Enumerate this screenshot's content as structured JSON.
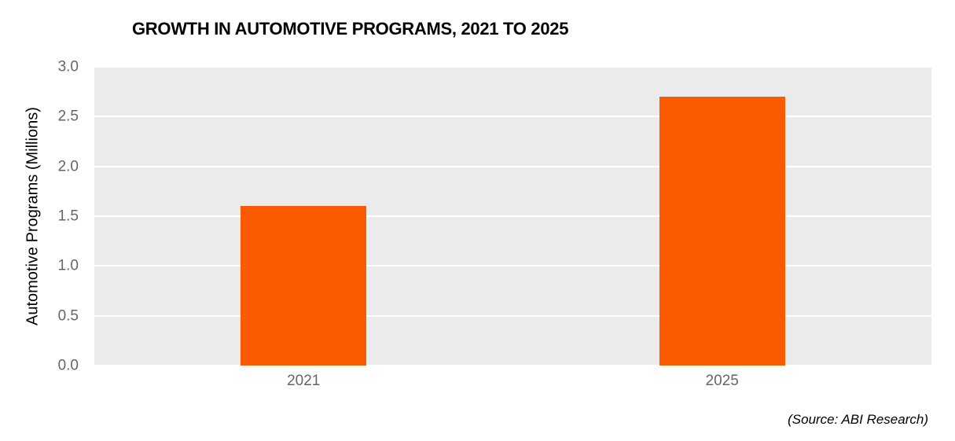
{
  "colors": {
    "bar": "#fb5a00",
    "plot_background": "#ebebeb",
    "gridline": "#ffffff",
    "tick_label": "#666666",
    "title": "#000000"
  },
  "chart_data": {
    "type": "bar",
    "title": "GROWTH IN AUTOMOTIVE PROGRAMS, 2021 TO 2025",
    "categories": [
      "2021",
      "2025"
    ],
    "values": [
      1.6,
      2.7
    ],
    "xlabel": "",
    "ylabel": "Automotive Programs (Millions)",
    "ylim": [
      0,
      3.0
    ],
    "yticks": [
      0.0,
      0.5,
      1.0,
      1.5,
      2.0,
      2.5,
      3.0
    ],
    "grid": true,
    "legend": false,
    "source": "(Source: ABI Research)"
  }
}
